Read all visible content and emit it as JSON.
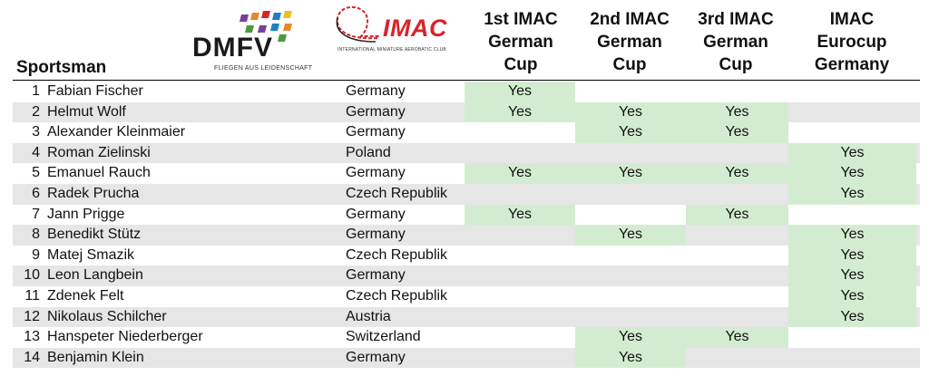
{
  "header": {
    "dmfv_logo_text": "DMFV",
    "dmfv_tagline": "FLIEGEN AUS LEIDENSCHAFT",
    "imac_logo_text": "IMAC",
    "imac_tagline": "INTERNATIONAL MINIATURE AEROBATIC CLUB",
    "sportsman_label": "Sportsman",
    "columns": [
      [
        "1st IMAC",
        "German",
        "Cup"
      ],
      [
        "2nd IMAC",
        "German",
        "Cup"
      ],
      [
        "3rd IMAC",
        "German",
        "Cup"
      ],
      [
        "IMAC",
        "Eurocup",
        "Germany"
      ]
    ]
  },
  "colors": {
    "yes_fill": "#d3ecd1",
    "alt_row": "#e6e6e6",
    "imac_red": "#d6242b"
  },
  "rows": [
    {
      "num": "1",
      "name": "Fabian Fischer",
      "country": "Germany",
      "c": [
        "Yes",
        "",
        "",
        ""
      ]
    },
    {
      "num": "2",
      "name": "Helmut Wolf",
      "country": "Germany",
      "c": [
        "Yes",
        "Yes",
        "Yes",
        ""
      ]
    },
    {
      "num": "3",
      "name": "Alexander Kleinmaier",
      "country": "Germany",
      "c": [
        "",
        "Yes",
        "Yes",
        ""
      ]
    },
    {
      "num": "4",
      "name": "Roman Zielinski",
      "country": "Poland",
      "c": [
        "",
        "",
        "",
        "Yes"
      ]
    },
    {
      "num": "5",
      "name": "Emanuel Rauch",
      "country": "Germany",
      "c": [
        "Yes",
        "Yes",
        "Yes",
        "Yes"
      ]
    },
    {
      "num": "6",
      "name": "Radek Prucha",
      "country": "Czech Republik",
      "c": [
        "",
        "",
        "",
        "Yes"
      ]
    },
    {
      "num": "7",
      "name": "Jann Prigge",
      "country": "Germany",
      "c": [
        "Yes",
        "",
        "Yes",
        ""
      ]
    },
    {
      "num": "8",
      "name": "Benedikt Stütz",
      "country": "Germany",
      "c": [
        "",
        "Yes",
        "",
        "Yes"
      ]
    },
    {
      "num": "9",
      "name": "Matej Smazik",
      "country": "Czech Republik",
      "c": [
        "",
        "",
        "",
        "Yes"
      ]
    },
    {
      "num": "10",
      "name": "Leon Langbein",
      "country": "Germany",
      "c": [
        "",
        "",
        "",
        "Yes"
      ]
    },
    {
      "num": "11",
      "name": "Zdenek Felt",
      "country": "Czech Republik",
      "c": [
        "",
        "",
        "",
        "Yes"
      ]
    },
    {
      "num": "12",
      "name": "Nikolaus Schilcher",
      "country": "Austria",
      "c": [
        "",
        "",
        "",
        "Yes"
      ]
    },
    {
      "num": "13",
      "name": "Hanspeter Niederberger",
      "country": "Switzerland",
      "c": [
        "",
        "Yes",
        "Yes",
        ""
      ]
    },
    {
      "num": "14",
      "name": "Benjamin Klein",
      "country": "Germany",
      "c": [
        "",
        "Yes",
        "",
        ""
      ]
    }
  ]
}
